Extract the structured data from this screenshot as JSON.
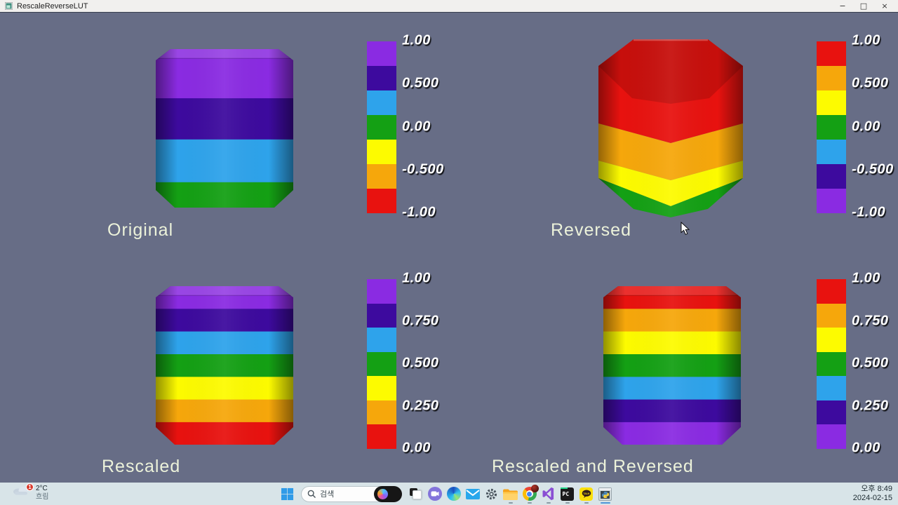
{
  "window": {
    "title": "RescaleReverseLUT",
    "minimize": "−",
    "maximize": "□",
    "close": "×"
  },
  "colors": {
    "viewport_bg": "#676D86",
    "violet": "#8A2BE2",
    "indigo": "#3D0A9E",
    "blue": "#2EA3EB",
    "green": "#14A014",
    "yellow": "#FDFB00",
    "orange": "#F6A70B",
    "red": "#E8120F",
    "corner_label_text": "#ECF2DA",
    "taskbar_bg": "#D8E4E8"
  },
  "quadrants": [
    {
      "label": "Original",
      "view": "side",
      "bands": [
        {
          "color": "violet",
          "frac": 0.31
        },
        {
          "color": "indigo",
          "frac": 0.26
        },
        {
          "color": "blue",
          "frac": 0.27
        },
        {
          "color": "green",
          "frac": 0.16
        }
      ],
      "scalebar": {
        "colors": [
          "violet",
          "indigo",
          "blue",
          "green",
          "yellow",
          "orange",
          "red"
        ],
        "ticks": [
          "1.00",
          "0.500",
          "0.00",
          "-0.500",
          "-1.00"
        ]
      }
    },
    {
      "label": "Reversed",
      "view": "top",
      "bands": [
        {
          "color": "red",
          "frac": 0.45
        },
        {
          "color": "orange",
          "frac": 0.21
        },
        {
          "color": "yellow",
          "frac": 0.21
        },
        {
          "color": "green",
          "frac": 0.13
        }
      ],
      "scalebar": {
        "colors": [
          "red",
          "orange",
          "yellow",
          "green",
          "blue",
          "indigo",
          "violet"
        ],
        "ticks": [
          "1.00",
          "0.500",
          "0.00",
          "-0.500",
          "-1.00"
        ]
      }
    },
    {
      "label": "Rescaled",
      "view": "side",
      "bands": [
        {
          "color": "violet",
          "frac": 0.143
        },
        {
          "color": "indigo",
          "frac": 0.143
        },
        {
          "color": "blue",
          "frac": 0.143
        },
        {
          "color": "green",
          "frac": 0.143
        },
        {
          "color": "yellow",
          "frac": 0.143
        },
        {
          "color": "orange",
          "frac": 0.143
        },
        {
          "color": "red",
          "frac": 0.143
        }
      ],
      "scalebar": {
        "colors": [
          "violet",
          "indigo",
          "blue",
          "green",
          "yellow",
          "orange",
          "red"
        ],
        "ticks": [
          "1.00",
          "0.750",
          "0.500",
          "0.250",
          "0.00"
        ]
      }
    },
    {
      "label": "Rescaled and Reversed",
      "view": "side",
      "bands": [
        {
          "color": "red",
          "frac": 0.143
        },
        {
          "color": "orange",
          "frac": 0.143
        },
        {
          "color": "yellow",
          "frac": 0.143
        },
        {
          "color": "green",
          "frac": 0.143
        },
        {
          "color": "blue",
          "frac": 0.143
        },
        {
          "color": "indigo",
          "frac": 0.143
        },
        {
          "color": "violet",
          "frac": 0.143
        }
      ],
      "scalebar": {
        "colors": [
          "red",
          "orange",
          "yellow",
          "green",
          "blue",
          "indigo",
          "violet"
        ],
        "ticks": [
          "1.00",
          "0.750",
          "0.500",
          "0.250",
          "0.00"
        ]
      }
    }
  ],
  "taskbar": {
    "weather": {
      "badge": "1",
      "temperature": "2°C",
      "condition": "흐림"
    },
    "search": {
      "placeholder": "검색"
    },
    "apps": [
      {
        "name": "task-view"
      },
      {
        "name": "chat"
      },
      {
        "name": "edge"
      },
      {
        "name": "mail"
      },
      {
        "name": "settings"
      },
      {
        "name": "file-explorer",
        "running": true
      },
      {
        "name": "chrome",
        "running": true
      },
      {
        "name": "visual-studio",
        "running": true
      },
      {
        "name": "pycharm",
        "running": true
      },
      {
        "name": "kakaotalk",
        "running": true
      },
      {
        "name": "python-console",
        "running": true,
        "active": true
      }
    ],
    "clock": {
      "time": "오후 8:49",
      "date": "2024-02-15"
    }
  }
}
